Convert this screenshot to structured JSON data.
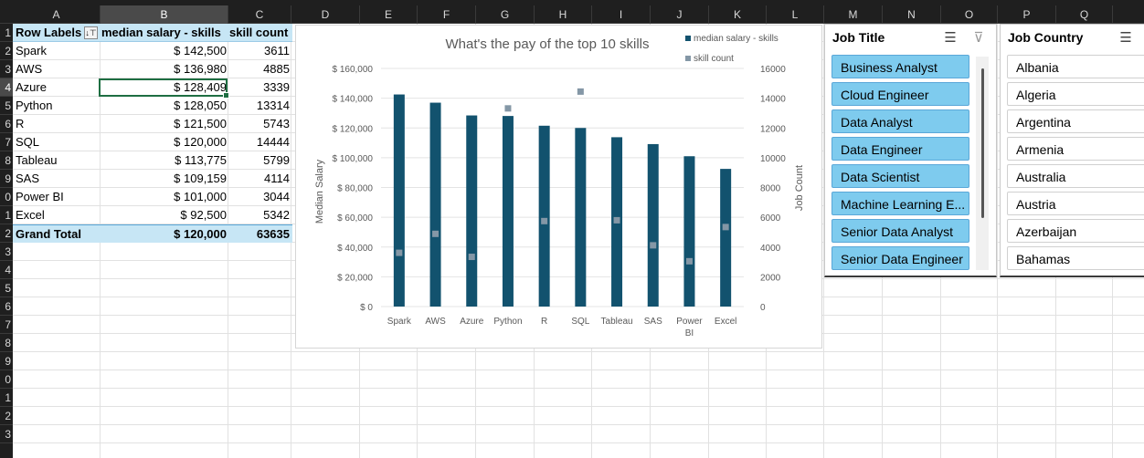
{
  "columns": [
    "A",
    "B",
    "C",
    "D",
    "E",
    "F",
    "G",
    "H",
    "I",
    "J",
    "K",
    "L",
    "M",
    "N",
    "O",
    "P",
    "Q"
  ],
  "selected_column": "B",
  "rows": [
    "1",
    "2",
    "3",
    "4",
    "5",
    "6",
    "7",
    "8",
    "9",
    "10",
    "11",
    "12",
    "13",
    "14",
    "15",
    "16",
    "17",
    "18",
    "19",
    "20",
    "21",
    "22",
    "23"
  ],
  "row_labels_display": [
    "1",
    "2",
    "3",
    "4",
    "5",
    "6",
    "7",
    "8",
    "9",
    "0",
    "1",
    "2",
    "3",
    "4",
    "5",
    "6",
    "7",
    "8",
    "9",
    "0",
    "1",
    "2",
    "3"
  ],
  "selected_row": "4",
  "pivot": {
    "headers": {
      "row_labels": "Row Labels",
      "median_salary": "median salary - skills",
      "skill_count": "skill count"
    },
    "filter_icon": "sort-filter-icon",
    "rows": [
      {
        "skill": "Spark",
        "salary": "$ 142,500",
        "count": "3611"
      },
      {
        "skill": "AWS",
        "salary": "$ 136,980",
        "count": "4885"
      },
      {
        "skill": "Azure",
        "salary": "$ 128,409",
        "count": "3339"
      },
      {
        "skill": "Python",
        "salary": "$ 128,050",
        "count": "13314"
      },
      {
        "skill": "R",
        "salary": "$ 121,500",
        "count": "5743"
      },
      {
        "skill": "SQL",
        "salary": "$ 120,000",
        "count": "14444"
      },
      {
        "skill": "Tableau",
        "salary": "$ 113,775",
        "count": "5799"
      },
      {
        "skill": "SAS",
        "salary": "$ 109,159",
        "count": "4114"
      },
      {
        "skill": "Power BI",
        "salary": "$ 101,000",
        "count": "3044"
      },
      {
        "skill": "Excel",
        "salary": "$ 92,500",
        "count": "5342"
      }
    ],
    "total": {
      "label": "Grand Total",
      "salary": "$ 120,000",
      "count": "63635"
    }
  },
  "chart_data": {
    "type": "bar",
    "title": "What's the pay of the top 10 skills",
    "categories": [
      "Spark",
      "AWS",
      "Azure",
      "Python",
      "R",
      "SQL",
      "Tableau",
      "SAS",
      "Power BI",
      "Excel"
    ],
    "series": [
      {
        "name": "median salary - skills",
        "kind": "bar",
        "axis": "left",
        "color": "#12526e",
        "values": [
          142500,
          136980,
          128409,
          128050,
          121500,
          120000,
          113775,
          109159,
          101000,
          92500
        ]
      },
      {
        "name": "skill count",
        "kind": "marker",
        "axis": "right",
        "color": "#8497a6",
        "values": [
          3611,
          4885,
          3339,
          13314,
          5743,
          14444,
          5799,
          4114,
          3044,
          5342
        ]
      }
    ],
    "ylabel": "Median Salary",
    "y2label": "Job Count",
    "ylim": [
      0,
      160000
    ],
    "y2lim": [
      0,
      16000
    ],
    "yticks": [
      "$ 0",
      "$ 20,000",
      "$ 40,000",
      "$ 60,000",
      "$ 80,000",
      "$ 100,000",
      "$ 120,000",
      "$ 140,000",
      "$ 160,000"
    ],
    "y2ticks": [
      "0",
      "2000",
      "4000",
      "6000",
      "8000",
      "10000",
      "12000",
      "14000",
      "16000"
    ],
    "legend_position": "top-right",
    "grid": true
  },
  "slicers": {
    "job_title": {
      "title": "Job Title",
      "icons": [
        "multi-select-icon",
        "clear-filter-icon"
      ],
      "items": [
        "Business Analyst",
        "Cloud Engineer",
        "Data Analyst",
        "Data Engineer",
        "Data Scientist",
        "Machine Learning E...",
        "Senior Data Analyst",
        "Senior Data Engineer"
      ]
    },
    "job_country": {
      "title": "Job Country",
      "icons": [
        "multi-select-icon"
      ],
      "items": [
        "Albania",
        "Algeria",
        "Argentina",
        "Armenia",
        "Australia",
        "Austria",
        "Azerbaijan",
        "Bahamas"
      ]
    }
  }
}
